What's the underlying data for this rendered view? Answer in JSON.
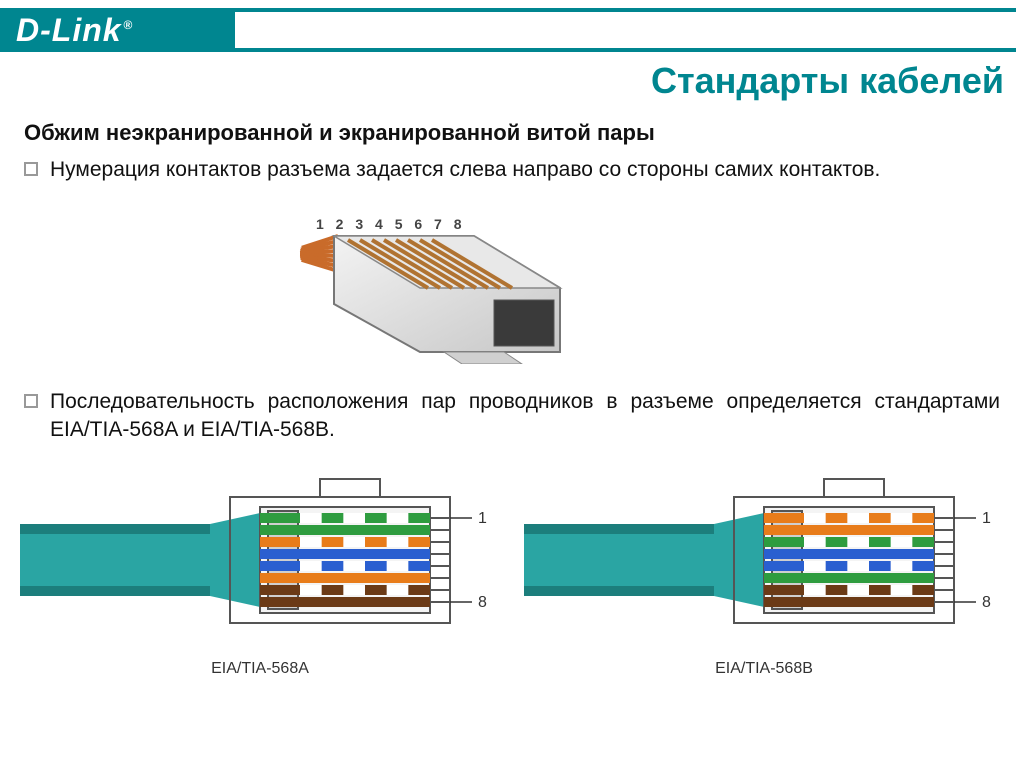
{
  "brand": "D-Link",
  "brand_reg": "®",
  "page_title": "Стандарты кабелей",
  "sub_title": "Обжим неэкранированной и экранированной витой пары",
  "bullet_1": "Нумерация контактов разъема задается слева направо со стороны самих контактов.",
  "bullet_2": "Последовательность расположения пар проводников в разъеме определяется стандартами EIA/TIA-568A и EIA/TIA-568B.",
  "pin_numbers": "1 2 3 4 5 6 7 8",
  "colors": {
    "teal_brand": "#008690",
    "cable_jacket": "#2aa5a3",
    "cable_jacket_dark": "#1c7e7c",
    "connector_outline": "#555555",
    "connector_fill": "#f4f4f4",
    "strain_relief": "#cfcfcf",
    "pin_label": "#444444",
    "wire_green_stripe": "#ffffff",
    "wire_green": "#2e9c3f",
    "wire_orange_stripe": "#ffffff",
    "wire_orange": "#e87c1a",
    "wire_blue": "#2a5fd0",
    "wire_blue_stripe": "#ffffff",
    "wire_brown_stripe": "#ffffff",
    "wire_brown": "#6b3a16"
  },
  "diagrams": {
    "pin_top_label": "1",
    "pin_bottom_label": "8",
    "wire_height": 10,
    "wire_gap": 2,
    "stripe_segments": 6,
    "a": {
      "caption": "EIA/TIA-568A",
      "order": [
        {
          "base": "#2e9c3f",
          "striped": true
        },
        {
          "base": "#2e9c3f",
          "striped": false
        },
        {
          "base": "#e87c1a",
          "striped": true
        },
        {
          "base": "#2a5fd0",
          "striped": false
        },
        {
          "base": "#2a5fd0",
          "striped": true
        },
        {
          "base": "#e87c1a",
          "striped": false
        },
        {
          "base": "#6b3a16",
          "striped": true
        },
        {
          "base": "#6b3a16",
          "striped": false
        }
      ]
    },
    "b": {
      "caption": "EIA/TIA-568B",
      "order": [
        {
          "base": "#e87c1a",
          "striped": true
        },
        {
          "base": "#e87c1a",
          "striped": false
        },
        {
          "base": "#2e9c3f",
          "striped": true
        },
        {
          "base": "#2a5fd0",
          "striped": false
        },
        {
          "base": "#2a5fd0",
          "striped": true
        },
        {
          "base": "#2e9c3f",
          "striped": false
        },
        {
          "base": "#6b3a16",
          "striped": true
        },
        {
          "base": "#6b3a16",
          "striped": false
        }
      ]
    }
  },
  "rj45_wires_color": "#c96b2a",
  "rj45_wires_count": 8
}
